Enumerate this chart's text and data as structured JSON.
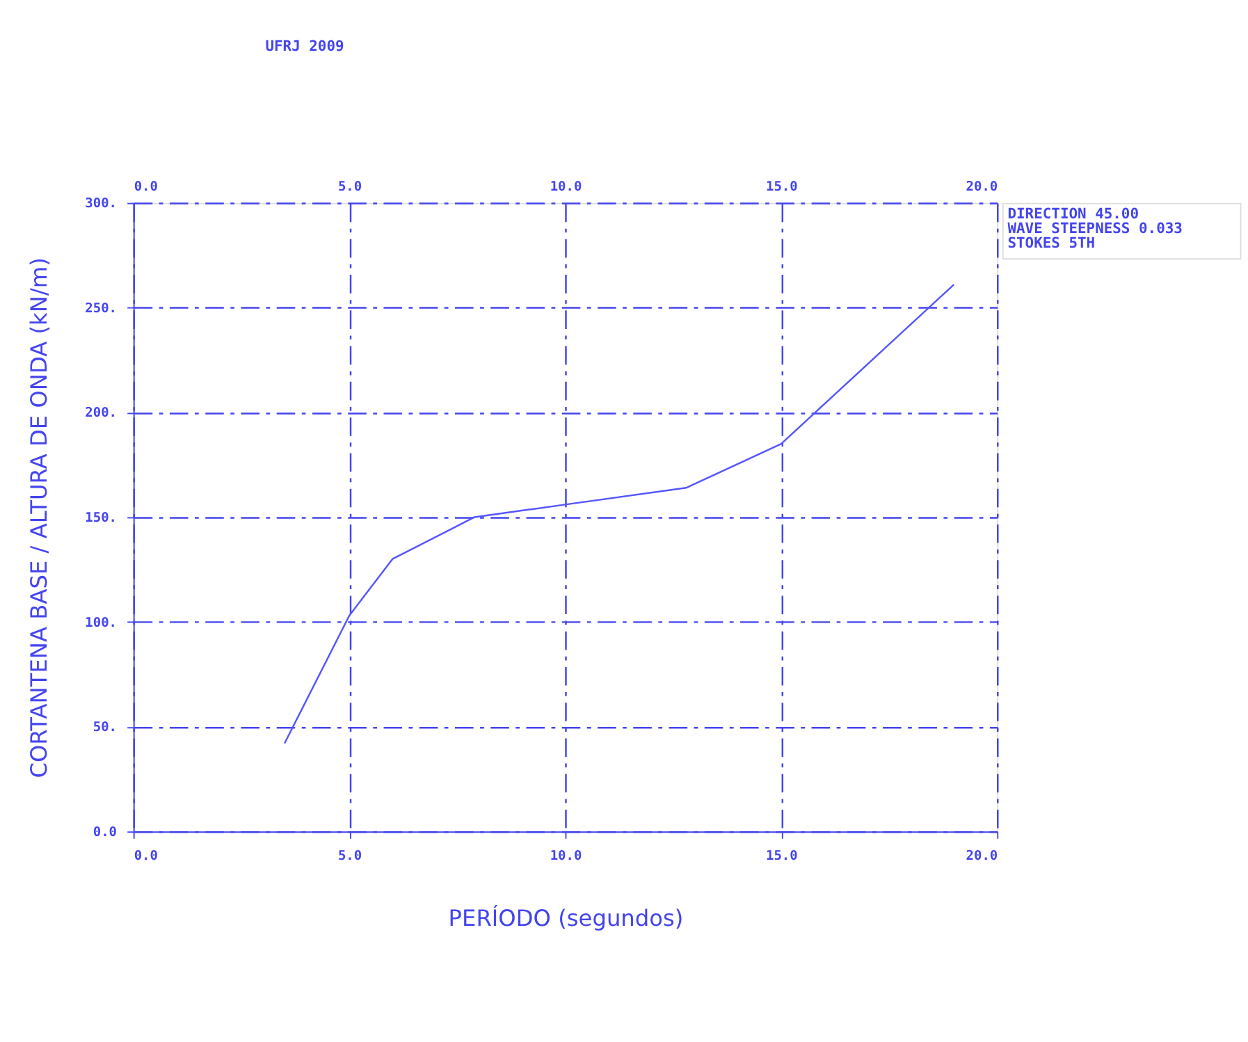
{
  "chart_data": {
    "type": "line",
    "title": "UFRJ  2009",
    "xlabel": "PERÍODO (segundos)",
    "ylabel": "CORTANTENA BASE / ALTURA DE ONDA (kN/m)",
    "annotations": [
      "DIRECTION  45.00",
      "WAVE STEEPNESS 0.033",
      "STOKES 5TH"
    ],
    "x": [
      3.5,
      5.0,
      6.0,
      7.9,
      10.0,
      12.8,
      15.0,
      19.0
    ],
    "series": [
      {
        "color": "#5555ff",
        "values": [
          42,
          103,
          130,
          150,
          156,
          164,
          185,
          261
        ]
      }
    ],
    "xlim": [
      0,
      20
    ],
    "ylim": [
      0,
      300
    ],
    "xticks": [
      {
        "value": 0,
        "label": "0.0"
      },
      {
        "value": 5,
        "label": "5.0"
      },
      {
        "value": 10,
        "label": "10.0"
      },
      {
        "value": 15,
        "label": "15.0"
      },
      {
        "value": 20,
        "label": "20.0"
      }
    ],
    "x2lim": [
      0,
      20
    ],
    "x2ticks": [
      {
        "value": 0,
        "label": "0.0"
      },
      {
        "value": 5,
        "label": "5.0"
      },
      {
        "value": 10,
        "label": "10.0"
      },
      {
        "value": 15,
        "label": "15.0"
      },
      {
        "value": 20,
        "label": "20.0"
      }
    ],
    "yticks": [
      {
        "value": 0,
        "label": "0.0"
      },
      {
        "value": 50,
        "label": "50."
      },
      {
        "value": 100,
        "label": "100."
      },
      {
        "value": 150,
        "label": "150."
      },
      {
        "value": 200,
        "label": "200."
      },
      {
        "value": 250,
        "label": "250."
      },
      {
        "value": 300,
        "label": "300."
      }
    ],
    "grid": true,
    "line_style": "solid",
    "marker": "none",
    "legend": false
  }
}
